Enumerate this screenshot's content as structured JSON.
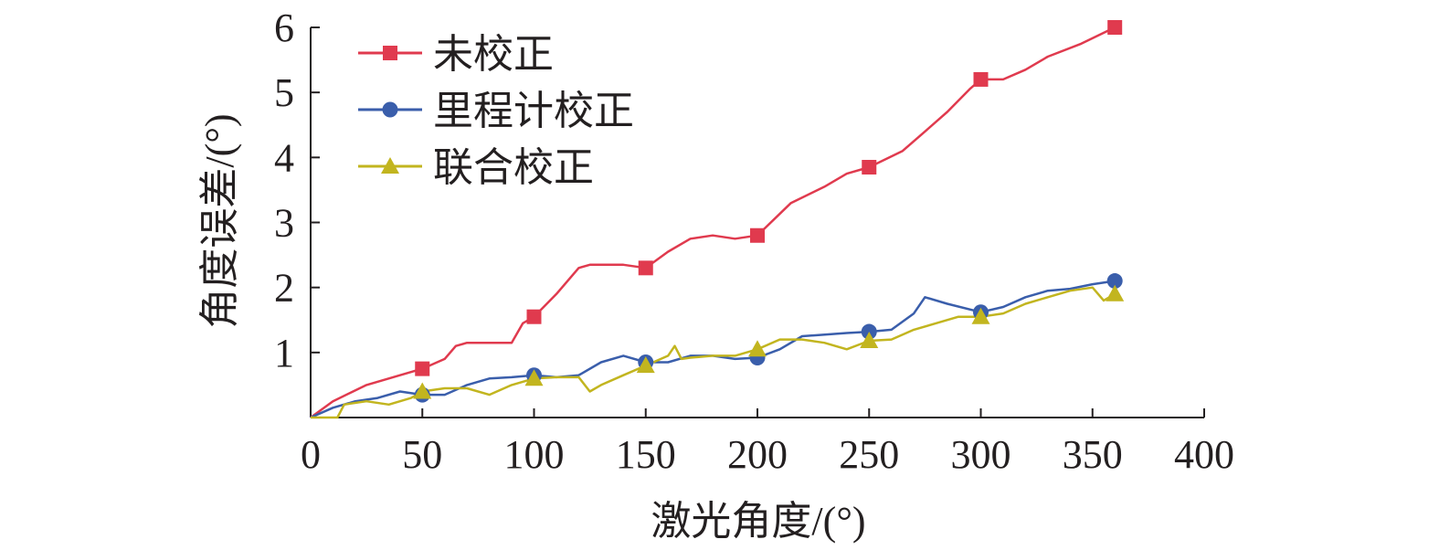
{
  "chart_data": {
    "type": "line",
    "xlabel": "激光角度/(°)",
    "ylabel": "角度误差/(°)",
    "xlim": [
      0,
      400
    ],
    "ylim": [
      0,
      6
    ],
    "xticks": [
      0,
      50,
      100,
      150,
      200,
      250,
      300,
      350,
      400
    ],
    "yticks": [
      1,
      2,
      3,
      4,
      5,
      6
    ],
    "legend_position": "top-left",
    "grid": false,
    "series": [
      {
        "name": "未校正",
        "color": "#e03a4e",
        "marker": "square",
        "x": [
          0,
          10,
          25,
          40,
          50,
          60,
          65,
          70,
          80,
          90,
          95,
          100,
          110,
          120,
          125,
          140,
          150,
          160,
          170,
          180,
          190,
          200,
          215,
          230,
          240,
          250,
          265,
          275,
          285,
          295,
          300,
          310,
          320,
          330,
          345,
          360
        ],
        "y": [
          0.0,
          0.25,
          0.5,
          0.65,
          0.75,
          0.9,
          1.1,
          1.15,
          1.15,
          1.15,
          1.45,
          1.55,
          1.9,
          2.3,
          2.35,
          2.35,
          2.3,
          2.55,
          2.75,
          2.8,
          2.75,
          2.8,
          3.3,
          3.55,
          3.75,
          3.85,
          4.1,
          4.4,
          4.7,
          5.05,
          5.2,
          5.2,
          5.35,
          5.55,
          5.75,
          6.0
        ],
        "marker_x": [
          50,
          100,
          150,
          200,
          250,
          300,
          360
        ],
        "marker_y": [
          0.75,
          1.55,
          2.3,
          2.8,
          3.85,
          5.2,
          6.0
        ]
      },
      {
        "name": "里程计校正",
        "color": "#3a5eab",
        "marker": "circle",
        "x": [
          0,
          10,
          20,
          30,
          40,
          50,
          60,
          70,
          80,
          90,
          100,
          110,
          120,
          130,
          140,
          150,
          160,
          170,
          180,
          190,
          200,
          210,
          220,
          240,
          250,
          260,
          270,
          275,
          285,
          300,
          310,
          320,
          330,
          340,
          350,
          360
        ],
        "y": [
          0.0,
          0.15,
          0.25,
          0.3,
          0.4,
          0.35,
          0.35,
          0.5,
          0.6,
          0.62,
          0.65,
          0.62,
          0.65,
          0.85,
          0.95,
          0.85,
          0.85,
          0.95,
          0.95,
          0.9,
          0.92,
          1.05,
          1.25,
          1.3,
          1.32,
          1.35,
          1.6,
          1.85,
          1.75,
          1.62,
          1.7,
          1.85,
          1.95,
          1.98,
          2.05,
          2.1
        ],
        "marker_x": [
          50,
          100,
          150,
          200,
          250,
          300,
          360
        ],
        "marker_y": [
          0.35,
          0.65,
          0.85,
          0.92,
          1.32,
          1.62,
          2.1
        ]
      },
      {
        "name": "联合校正",
        "color": "#c2b51f",
        "marker": "triangle",
        "x": [
          0,
          12,
          15,
          25,
          35,
          45,
          50,
          60,
          70,
          80,
          90,
          100,
          110,
          120,
          125,
          130,
          140,
          150,
          160,
          163,
          166,
          170,
          180,
          190,
          200,
          210,
          220,
          230,
          240,
          250,
          260,
          270,
          280,
          290,
          300,
          310,
          320,
          330,
          340,
          350,
          355,
          360
        ],
        "y": [
          0.0,
          0.0,
          0.2,
          0.25,
          0.2,
          0.3,
          0.4,
          0.45,
          0.45,
          0.35,
          0.5,
          0.6,
          0.62,
          0.62,
          0.4,
          0.5,
          0.65,
          0.8,
          0.95,
          1.1,
          0.9,
          0.92,
          0.95,
          0.95,
          1.05,
          1.2,
          1.2,
          1.15,
          1.05,
          1.18,
          1.2,
          1.35,
          1.45,
          1.55,
          1.55,
          1.6,
          1.75,
          1.85,
          1.95,
          2.0,
          1.8,
          1.9
        ],
        "marker_x": [
          50,
          100,
          150,
          200,
          250,
          300,
          360
        ],
        "marker_y": [
          0.4,
          0.6,
          0.8,
          1.05,
          1.18,
          1.55,
          1.9
        ]
      }
    ]
  }
}
